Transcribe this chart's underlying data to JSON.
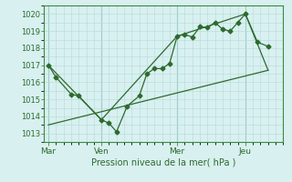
{
  "title": "",
  "xlabel": "Pression niveau de la mer( hPa )",
  "bg_color": "#d8f0f0",
  "grid_color": "#b8d8d8",
  "vline_color": "#88bbbb",
  "line_color": "#2d6a2d",
  "ylim": [
    1012.5,
    1020.5
  ],
  "yticks": [
    1013,
    1014,
    1015,
    1016,
    1017,
    1018,
    1019,
    1020
  ],
  "day_labels": [
    "Mar",
    "Ven",
    "Mer",
    "Jeu"
  ],
  "day_positions": [
    0,
    3.5,
    8.5,
    13
  ],
  "vline_positions": [
    0,
    3.5,
    8.5,
    13
  ],
  "xlim": [
    -0.3,
    15.5
  ],
  "line1_x": [
    0,
    0.5,
    1.5,
    2.0,
    3.5,
    4.0,
    4.5,
    5.2,
    6.0,
    6.5,
    7.0,
    7.5,
    8.0,
    8.5,
    9.0,
    9.5,
    10.0,
    10.5,
    11.0,
    11.5,
    12.0,
    12.5,
    13.0,
    13.8,
    14.5
  ],
  "line1_y": [
    1017.0,
    1016.3,
    1015.3,
    1015.2,
    1013.8,
    1013.6,
    1013.1,
    1014.6,
    1015.2,
    1016.5,
    1016.8,
    1016.8,
    1017.1,
    1018.7,
    1018.8,
    1018.65,
    1019.25,
    1019.2,
    1019.5,
    1019.1,
    1019.0,
    1019.5,
    1020.0,
    1018.35,
    1018.1
  ],
  "line2_x": [
    0,
    3.5,
    8.5,
    13.0,
    14.5
  ],
  "line2_y": [
    1017.0,
    1013.8,
    1018.7,
    1020.0,
    1016.7
  ],
  "line3_x": [
    0,
    14.5
  ],
  "line3_y": [
    1013.5,
    1016.7
  ],
  "marker": "D",
  "marker_size": 2.5,
  "line_width": 0.9
}
